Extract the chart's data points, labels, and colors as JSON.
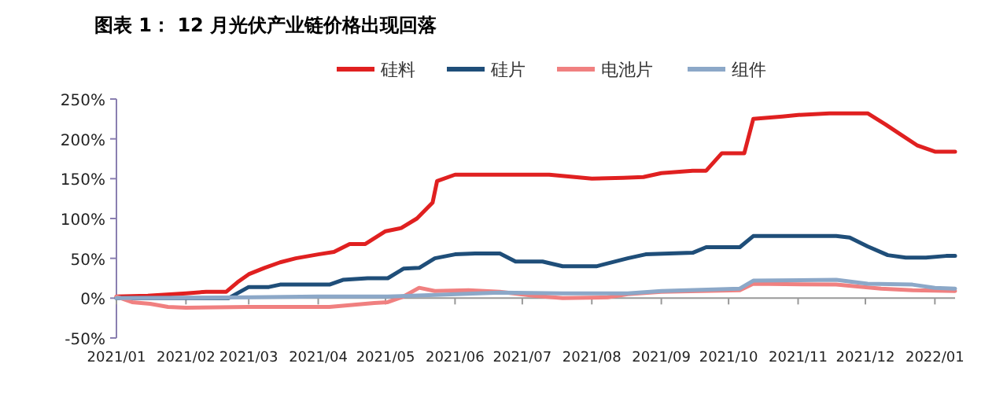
{
  "chart_data": {
    "type": "line",
    "title": "图表 1：  12 月光伏产业链价格出现回落",
    "legend": "top",
    "marker": "none",
    "line_style": "solid",
    "xlim": [
      "2021-01-01",
      "2022-01-10"
    ],
    "xticks": [
      {
        "value": "2021-01-01",
        "label": "2021/01"
      },
      {
        "value": "2021-02-01",
        "label": "2021/02"
      },
      {
        "value": "2021-03-01",
        "label": "2021/03"
      },
      {
        "value": "2021-04-01",
        "label": "2021/04"
      },
      {
        "value": "2021-05-01",
        "label": "2021/05"
      },
      {
        "value": "2021-06-01",
        "label": "2021/06"
      },
      {
        "value": "2021-07-01",
        "label": "2021/07"
      },
      {
        "value": "2021-08-01",
        "label": "2021/08"
      },
      {
        "value": "2021-09-01",
        "label": "2021/09"
      },
      {
        "value": "2021-10-01",
        "label": "2021/10"
      },
      {
        "value": "2021-11-01",
        "label": "2021/11"
      },
      {
        "value": "2021-12-01",
        "label": "2021/12"
      },
      {
        "value": "2022-01-01",
        "label": "2022/01"
      }
    ],
    "ylim": [
      -50,
      250
    ],
    "yticks": [
      {
        "value": -50,
        "label": "-50%"
      },
      {
        "value": 0,
        "label": "0%"
      },
      {
        "value": 50,
        "label": "50%"
      },
      {
        "value": 100,
        "label": "100%"
      },
      {
        "value": 150,
        "label": "150%"
      },
      {
        "value": 200,
        "label": "200%"
      },
      {
        "value": 250,
        "label": "250%"
      }
    ],
    "series": [
      {
        "name": "硅料",
        "color": "#e02020",
        "x": [
          "2021-01-01",
          "2021-01-15",
          "2021-02-01",
          "2021-02-10",
          "2021-02-19",
          "2021-02-24",
          "2021-03-01",
          "2021-03-08",
          "2021-03-15",
          "2021-03-22",
          "2021-04-01",
          "2021-04-08",
          "2021-04-15",
          "2021-04-22",
          "2021-05-01",
          "2021-05-08",
          "2021-05-15",
          "2021-05-22",
          "2021-05-24",
          "2021-06-01",
          "2021-07-13",
          "2021-08-01",
          "2021-08-15",
          "2021-08-24",
          "2021-09-01",
          "2021-09-15",
          "2021-09-21",
          "2021-09-28",
          "2021-10-08",
          "2021-10-12",
          "2021-10-25",
          "2021-11-01",
          "2021-11-15",
          "2021-12-02",
          "2021-12-10",
          "2021-12-17",
          "2021-12-24",
          "2022-01-01",
          "2022-01-10"
        ],
        "values": [
          2,
          3,
          6,
          8,
          8,
          20,
          30,
          38,
          45,
          50,
          55,
          58,
          68,
          68,
          84,
          88,
          100,
          120,
          147,
          155,
          155,
          150,
          151,
          152,
          157,
          160,
          160,
          182,
          182,
          225,
          228,
          230,
          232,
          232,
          218,
          205,
          192,
          184,
          184
        ]
      },
      {
        "name": "硅片",
        "color": "#1f4e79",
        "x": [
          "2021-01-01",
          "2021-02-20",
          "2021-03-01",
          "2021-03-10",
          "2021-03-15",
          "2021-04-06",
          "2021-04-12",
          "2021-04-23",
          "2021-05-02",
          "2021-05-09",
          "2021-05-16",
          "2021-05-23",
          "2021-06-01",
          "2021-06-10",
          "2021-06-21",
          "2021-06-28",
          "2021-07-10",
          "2021-07-19",
          "2021-08-03",
          "2021-08-17",
          "2021-08-25",
          "2021-09-15",
          "2021-09-21",
          "2021-10-06",
          "2021-10-12",
          "2021-11-18",
          "2021-11-24",
          "2021-12-02",
          "2021-12-11",
          "2021-12-19",
          "2021-12-28",
          "2022-01-06",
          "2022-01-10"
        ],
        "values": [
          0,
          0,
          14,
          14,
          17,
          17,
          23,
          25,
          25,
          37,
          38,
          50,
          55,
          56,
          56,
          46,
          46,
          40,
          40,
          50,
          55,
          57,
          64,
          64,
          78,
          78,
          76,
          65,
          54,
          51,
          51,
          53,
          53
        ]
      },
      {
        "name": "电池片",
        "color": "#f08080",
        "x": [
          "2021-01-01",
          "2021-01-08",
          "2021-01-16",
          "2021-01-24",
          "2021-02-01",
          "2021-03-01",
          "2021-04-06",
          "2021-04-18",
          "2021-04-26",
          "2021-05-02",
          "2021-05-09",
          "2021-05-16",
          "2021-05-23",
          "2021-06-07",
          "2021-06-21",
          "2021-07-06",
          "2021-07-19",
          "2021-08-08",
          "2021-08-17",
          "2021-09-01",
          "2021-10-06",
          "2021-10-12",
          "2021-11-18",
          "2021-12-08",
          "2021-12-22",
          "2022-01-10"
        ],
        "values": [
          2,
          -5,
          -7,
          -11,
          -12,
          -11,
          -11,
          -8,
          -6,
          -5,
          2,
          13,
          9,
          10,
          8,
          3,
          0,
          1,
          5,
          8,
          10,
          18,
          17,
          12,
          10,
          9
        ]
      },
      {
        "name": "组件",
        "color": "#8ca8c8",
        "x": [
          "2021-01-01",
          "2021-03-01",
          "2021-04-01",
          "2021-05-02",
          "2021-05-23",
          "2021-06-21",
          "2021-07-19",
          "2021-08-17",
          "2021-09-01",
          "2021-10-06",
          "2021-10-12",
          "2021-11-18",
          "2021-12-02",
          "2021-12-22",
          "2022-01-01",
          "2022-01-10"
        ],
        "values": [
          0,
          1,
          2,
          2,
          4,
          7,
          6,
          6,
          9,
          12,
          22,
          23,
          18,
          17,
          13,
          12
        ]
      }
    ]
  }
}
